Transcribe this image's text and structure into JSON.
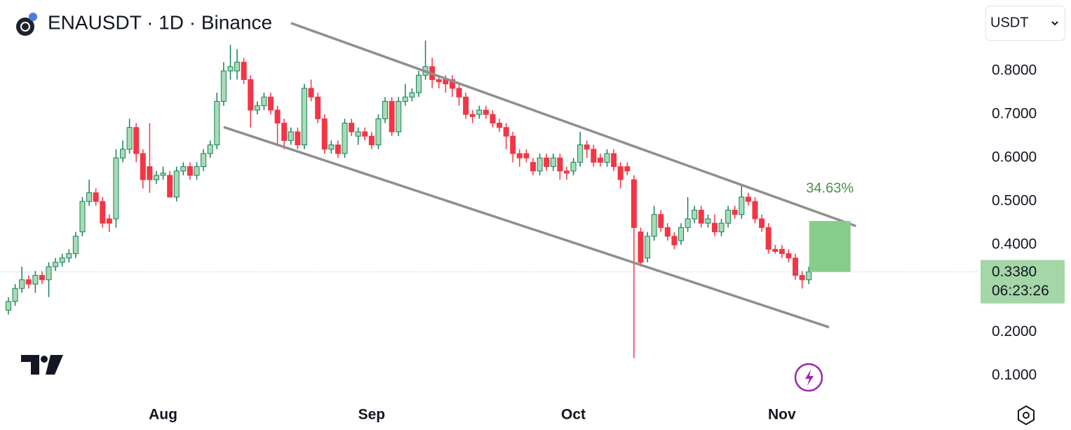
{
  "chart_data": {
    "type": "candlestick",
    "title": "ENAUSDT · 1D · Binance",
    "quote": "USDT",
    "categories": [
      null,
      null,
      null,
      null,
      null,
      null,
      null,
      null,
      null,
      null,
      null,
      null,
      null,
      null,
      null,
      null,
      null,
      null,
      null,
      null,
      null,
      null,
      null,
      "Aug",
      null,
      null,
      null,
      null,
      null,
      null,
      null,
      null,
      null,
      null,
      null,
      null,
      null,
      null,
      null,
      null,
      null,
      null,
      null,
      null,
      null,
      null,
      null,
      null,
      null,
      null,
      null,
      null,
      null,
      null,
      "Sep",
      null,
      null,
      null,
      null,
      null,
      null,
      null,
      null,
      null,
      null,
      null,
      null,
      null,
      null,
      null,
      null,
      null,
      null,
      null,
      null,
      null,
      null,
      null,
      null,
      null,
      null,
      null,
      null,
      null,
      "Oct",
      null,
      null,
      null,
      null,
      null,
      null,
      null,
      null,
      null,
      null,
      null,
      null,
      null,
      null,
      null,
      null,
      null,
      null,
      null,
      null,
      null,
      null,
      null,
      null,
      null,
      null,
      null,
      null,
      null,
      null,
      "Nov",
      null,
      null,
      null,
      null
    ],
    "open": [
      0.25,
      0.27,
      0.3,
      0.32,
      0.31,
      0.33,
      0.32,
      0.35,
      0.36,
      0.37,
      0.38,
      0.43,
      0.5,
      0.52,
      0.5,
      0.46,
      0.46,
      0.6,
      0.62,
      0.67,
      0.61,
      0.58,
      0.55,
      0.56,
      0.56,
      0.51,
      0.57,
      0.58,
      0.56,
      0.58,
      0.61,
      0.63,
      0.73,
      0.8,
      0.8,
      0.82,
      0.78,
      0.71,
      0.72,
      0.74,
      0.71,
      0.68,
      0.64,
      0.66,
      0.63,
      0.76,
      0.74,
      0.69,
      0.62,
      0.63,
      0.61,
      0.68,
      0.65,
      0.66,
      0.65,
      0.63,
      0.69,
      0.73,
      0.66,
      0.73,
      0.74,
      0.75,
      0.79,
      0.81,
      0.78,
      0.78,
      0.78,
      0.76,
      0.74,
      0.7,
      0.7,
      0.71,
      0.7,
      0.68,
      0.67,
      0.65,
      0.61,
      0.61,
      0.59,
      0.57,
      0.6,
      0.58,
      0.6,
      0.57,
      0.57,
      0.59,
      0.63,
      0.62,
      0.6,
      0.59,
      0.61,
      0.58,
      0.58,
      0.55,
      0.43,
      0.37,
      0.42,
      0.47,
      0.44,
      0.42,
      0.41,
      0.44,
      0.46,
      0.48,
      0.45,
      0.45,
      0.43,
      0.45,
      0.48,
      0.47,
      0.51,
      0.5,
      0.46,
      0.44,
      0.39,
      0.39,
      0.38,
      0.37,
      0.33,
      0.32
    ],
    "high": [
      0.28,
      0.31,
      0.35,
      0.33,
      0.34,
      0.34,
      0.36,
      0.37,
      0.38,
      0.39,
      0.43,
      0.51,
      0.55,
      0.53,
      0.51,
      0.47,
      0.62,
      0.64,
      0.69,
      0.68,
      0.62,
      0.68,
      0.57,
      0.58,
      0.57,
      0.58,
      0.59,
      0.59,
      0.59,
      0.62,
      0.64,
      0.75,
      0.82,
      0.86,
      0.85,
      0.83,
      0.79,
      0.73,
      0.75,
      0.75,
      0.72,
      0.69,
      0.67,
      0.67,
      0.77,
      0.78,
      0.75,
      0.7,
      0.64,
      0.64,
      0.69,
      0.69,
      0.67,
      0.67,
      0.66,
      0.7,
      0.74,
      0.74,
      0.74,
      0.77,
      0.76,
      0.8,
      0.87,
      0.83,
      0.79,
      0.79,
      0.79,
      0.77,
      0.75,
      0.71,
      0.72,
      0.72,
      0.71,
      0.69,
      0.68,
      0.66,
      0.62,
      0.62,
      0.6,
      0.61,
      0.61,
      0.61,
      0.61,
      0.58,
      0.6,
      0.66,
      0.64,
      0.63,
      0.61,
      0.62,
      0.62,
      0.59,
      0.59,
      0.56,
      0.44,
      0.43,
      0.49,
      0.48,
      0.45,
      0.43,
      0.45,
      0.51,
      0.49,
      0.49,
      0.47,
      0.47,
      0.46,
      0.49,
      0.49,
      0.54,
      0.52,
      0.51,
      0.47,
      0.45,
      0.4,
      0.4,
      0.39,
      0.38,
      0.34,
      0.35
    ],
    "low": [
      0.24,
      0.26,
      0.29,
      0.3,
      0.29,
      0.31,
      0.28,
      0.34,
      0.35,
      0.36,
      0.37,
      0.42,
      0.49,
      0.49,
      0.44,
      0.43,
      0.44,
      0.59,
      0.61,
      0.59,
      0.53,
      0.52,
      0.54,
      0.55,
      0.51,
      0.5,
      0.56,
      0.55,
      0.55,
      0.57,
      0.6,
      0.62,
      0.72,
      0.78,
      0.78,
      0.77,
      0.67,
      0.7,
      0.71,
      0.7,
      0.63,
      0.62,
      0.63,
      0.62,
      0.62,
      0.73,
      0.68,
      0.61,
      0.61,
      0.6,
      0.6,
      0.65,
      0.63,
      0.64,
      0.62,
      0.62,
      0.68,
      0.65,
      0.65,
      0.72,
      0.73,
      0.74,
      0.78,
      0.76,
      0.76,
      0.75,
      0.74,
      0.72,
      0.69,
      0.68,
      0.69,
      0.69,
      0.67,
      0.66,
      0.62,
      0.59,
      0.58,
      0.59,
      0.56,
      0.56,
      0.57,
      0.57,
      0.55,
      0.55,
      0.56,
      0.58,
      0.6,
      0.58,
      0.58,
      0.58,
      0.57,
      0.53,
      0.56,
      0.14,
      0.35,
      0.36,
      0.41,
      0.43,
      0.41,
      0.39,
      0.4,
      0.43,
      0.45,
      0.44,
      0.44,
      0.42,
      0.42,
      0.44,
      0.46,
      0.46,
      0.49,
      0.45,
      0.43,
      0.38,
      0.38,
      0.37,
      0.36,
      0.32,
      0.3,
      0.31
    ],
    "close": [
      0.27,
      0.3,
      0.32,
      0.31,
      0.33,
      0.32,
      0.35,
      0.36,
      0.37,
      0.38,
      0.42,
      0.5,
      0.52,
      0.5,
      0.45,
      0.45,
      0.6,
      0.62,
      0.67,
      0.61,
      0.55,
      0.55,
      0.56,
      0.565,
      0.51,
      0.57,
      0.58,
      0.56,
      0.58,
      0.61,
      0.63,
      0.73,
      0.8,
      0.81,
      0.82,
      0.78,
      0.71,
      0.72,
      0.74,
      0.71,
      0.68,
      0.64,
      0.66,
      0.63,
      0.76,
      0.74,
      0.69,
      0.62,
      0.63,
      0.61,
      0.68,
      0.66,
      0.66,
      0.65,
      0.63,
      0.69,
      0.73,
      0.66,
      0.73,
      0.74,
      0.75,
      0.79,
      0.81,
      0.78,
      0.775,
      0.77,
      0.76,
      0.74,
      0.7,
      0.695,
      0.71,
      0.7,
      0.68,
      0.67,
      0.65,
      0.61,
      0.6,
      0.6,
      0.57,
      0.6,
      0.58,
      0.6,
      0.57,
      0.565,
      0.59,
      0.63,
      0.62,
      0.59,
      0.59,
      0.61,
      0.58,
      0.55,
      0.57,
      0.44,
      0.36,
      0.42,
      0.47,
      0.44,
      0.42,
      0.4,
      0.44,
      0.46,
      0.48,
      0.45,
      0.46,
      0.43,
      0.45,
      0.48,
      0.47,
      0.51,
      0.5,
      0.46,
      0.44,
      0.39,
      0.385,
      0.38,
      0.37,
      0.33,
      0.32,
      0.338
    ],
    "up_color": "#a8dcb6",
    "up_border": "#17805a",
    "down_color": "#f23645",
    "ylim": [
      0.044,
      0.963
    ],
    "yticks": [
      {
        "value": 0.1,
        "label": "0.1000"
      },
      {
        "value": 0.2,
        "label": "0.2000"
      },
      {
        "value": 0.4,
        "label": "0.4000"
      },
      {
        "value": 0.5,
        "label": "0.5000"
      },
      {
        "value": 0.6,
        "label": "0.6000"
      },
      {
        "value": 0.7,
        "label": "0.7000"
      },
      {
        "value": 0.8,
        "label": "0.8000"
      }
    ],
    "last_price": {
      "value": 0.338,
      "label": "0.3380"
    },
    "countdown": "06:23:26",
    "measure": {
      "from": 0.338,
      "to": 0.455,
      "label": "34.63%"
    },
    "trendlines": [
      {
        "x": [
          42,
          126
        ],
        "y": [
          0.91,
          0.4435
        ]
      },
      {
        "x": [
          32,
          122
        ],
        "y": [
          0.671,
          0.211
        ]
      }
    ]
  }
}
